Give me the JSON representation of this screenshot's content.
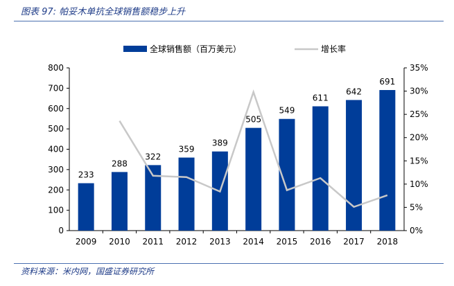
{
  "title": "图表 97:  帕妥木单抗全球销售额稳步上升",
  "source": "资料来源：米内网，国盛证券研究所",
  "colors": {
    "bar": "#003D99",
    "line": "#C8C8C8",
    "accent": "#1f3c88"
  },
  "chart_data": {
    "type": "bar",
    "categories": [
      "2009",
      "2010",
      "2011",
      "2012",
      "2013",
      "2014",
      "2015",
      "2016",
      "2017",
      "2018"
    ],
    "series": [
      {
        "name": "全球销售额（百万美元）",
        "type": "bar",
        "axis": "left",
        "values": [
          233,
          288,
          322,
          359,
          389,
          505,
          549,
          611,
          642,
          691
        ]
      },
      {
        "name": "增长率",
        "type": "line",
        "axis": "right",
        "values": [
          null,
          23.6,
          11.8,
          11.5,
          8.4,
          29.8,
          8.7,
          11.3,
          5.1,
          7.6
        ]
      }
    ],
    "ylim": [
      0,
      800
    ],
    "yticks": [
      "0",
      "100",
      "200",
      "300",
      "400",
      "500",
      "600",
      "700",
      "800"
    ],
    "y2lim": [
      0,
      35
    ],
    "y2ticks": [
      "0%",
      "5%",
      "10%",
      "15%",
      "20%",
      "25%",
      "30%",
      "35%"
    ],
    "legend": "top",
    "grid": false
  }
}
